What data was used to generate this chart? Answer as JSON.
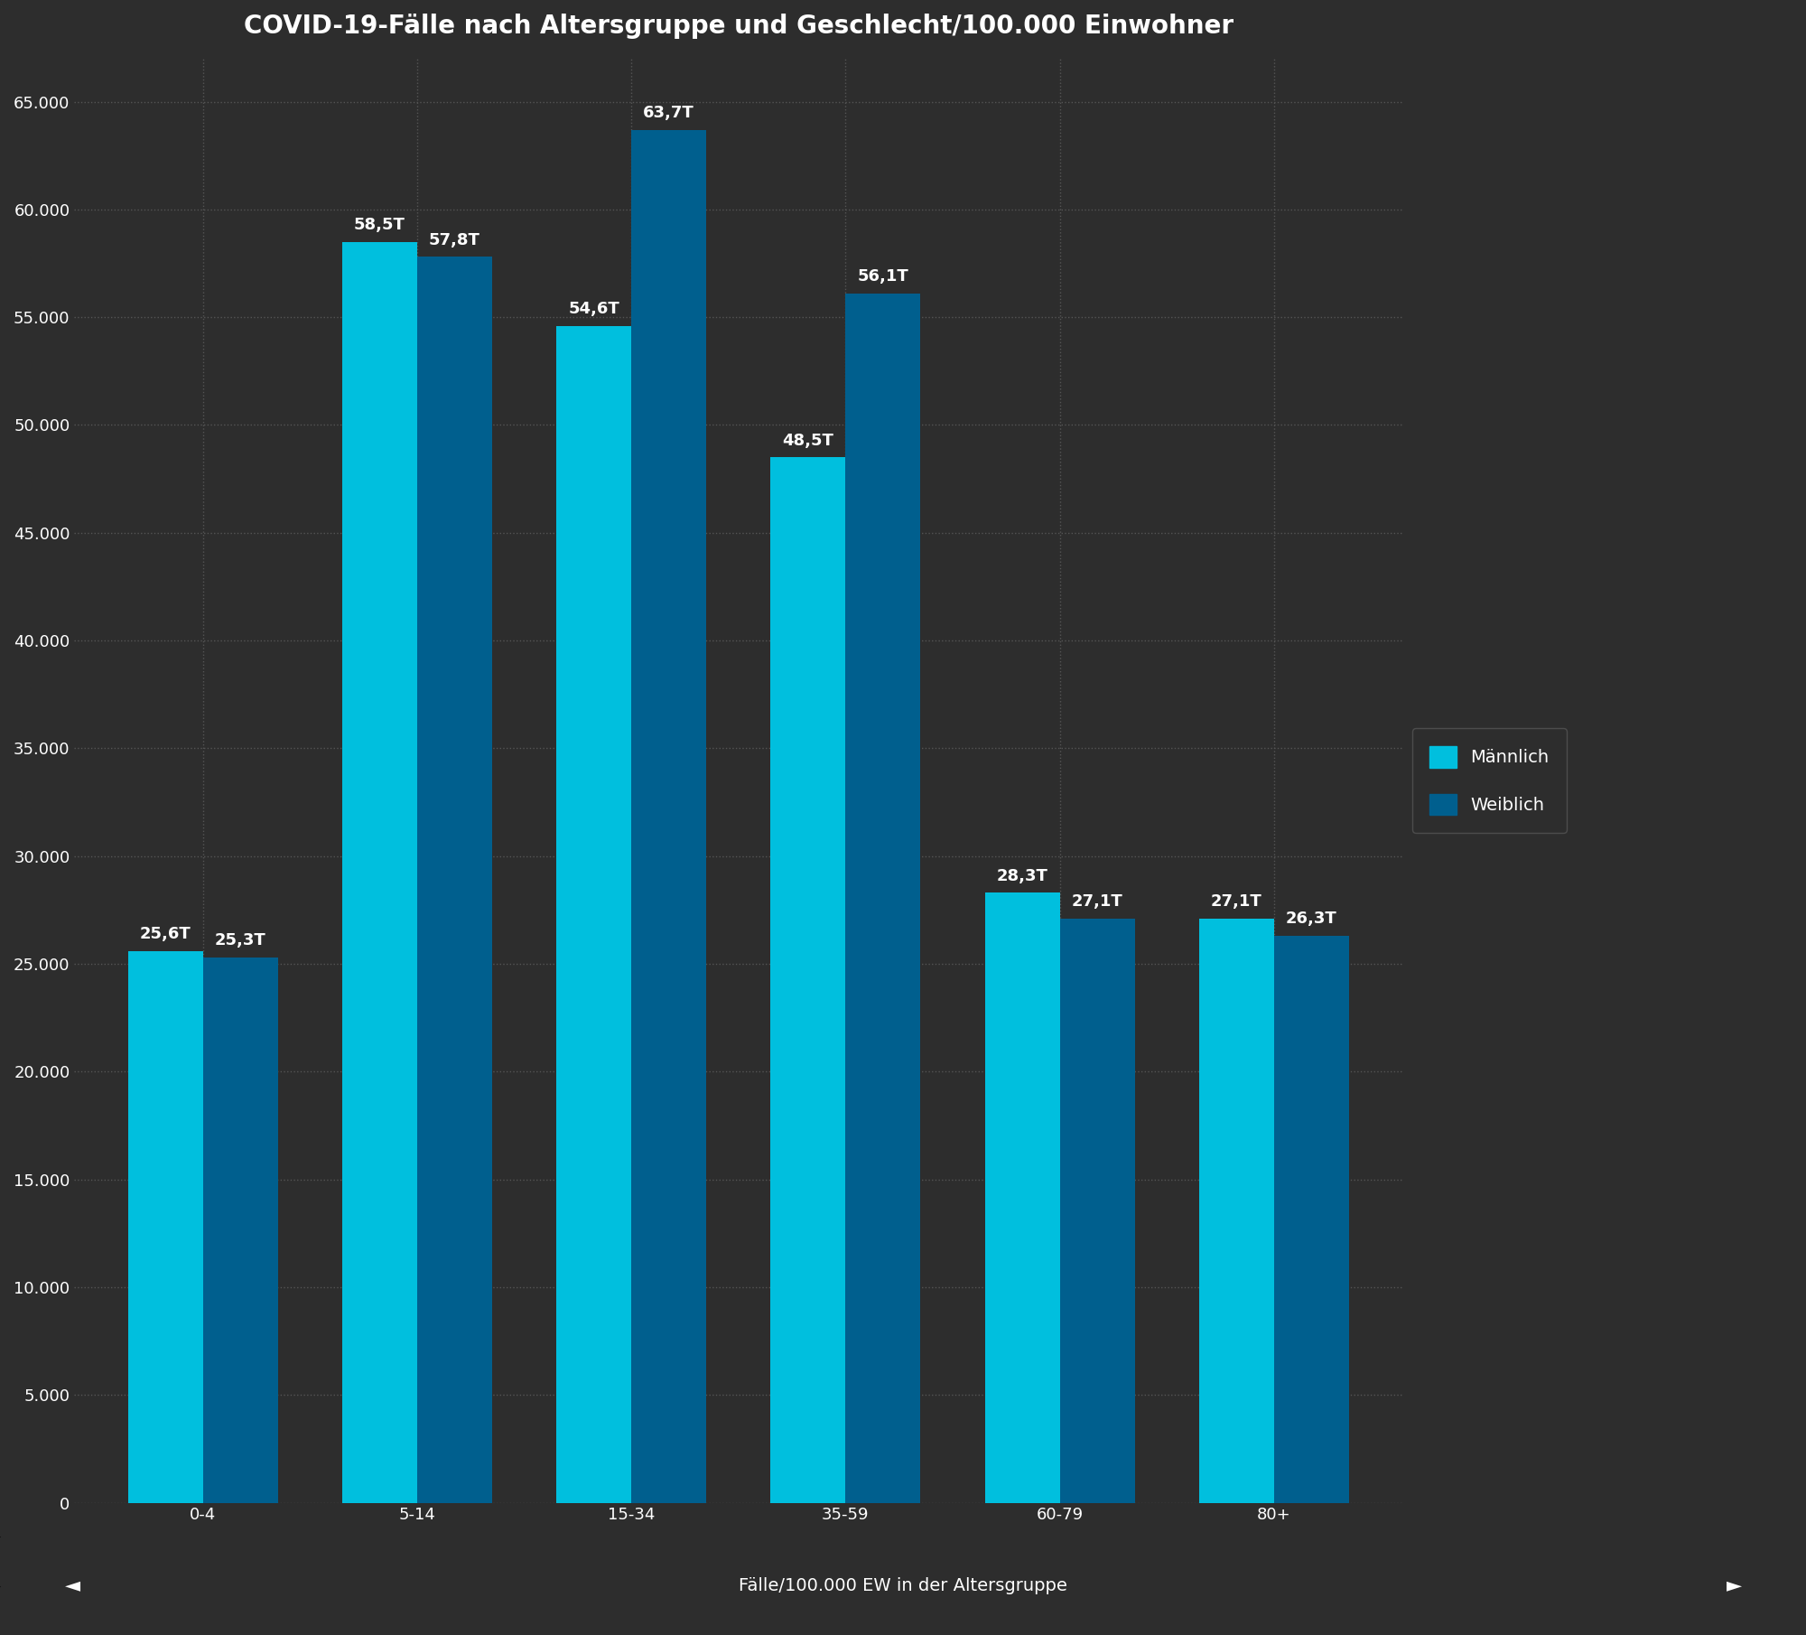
{
  "title": "COVID-19-Fälle nach Altersgruppe und Geschlecht/100.000 Einwohner",
  "xlabel": "Fälle/100.000 EW in der Altersgruppe",
  "categories": [
    "0-4",
    "5-14",
    "15-34",
    "35-59",
    "60-79",
    "80+"
  ],
  "maennlich": [
    25600,
    58500,
    54600,
    48500,
    28300,
    27100
  ],
  "weiblich": [
    25300,
    57800,
    63700,
    56100,
    27100,
    26300
  ],
  "maennlich_labels": [
    "25,6T",
    "58,5T",
    "54,6T",
    "48,5T",
    "28,3T",
    "27,1T"
  ],
  "weiblich_labels": [
    "25,3T",
    "57,8T",
    "63,7T",
    "56,1T",
    "27,1T",
    "26,3T"
  ],
  "color_maennlich": "#00BFDE",
  "color_weiblich": "#005F8E",
  "background_color": "#2d2d2d",
  "plot_bg_color": "#2d2d2d",
  "text_color": "#ffffff",
  "grid_color": "#555555",
  "ylim": [
    0,
    67000
  ],
  "yticks": [
    0,
    5000,
    10000,
    15000,
    20000,
    25000,
    30000,
    35000,
    40000,
    45000,
    50000,
    55000,
    60000,
    65000
  ],
  "legend_maennlich": "Männlich",
  "legend_weiblich": "Weiblich",
  "title_fontsize": 20,
  "label_fontsize": 14,
  "tick_fontsize": 13,
  "bar_label_fontsize": 13,
  "legend_fontsize": 14
}
